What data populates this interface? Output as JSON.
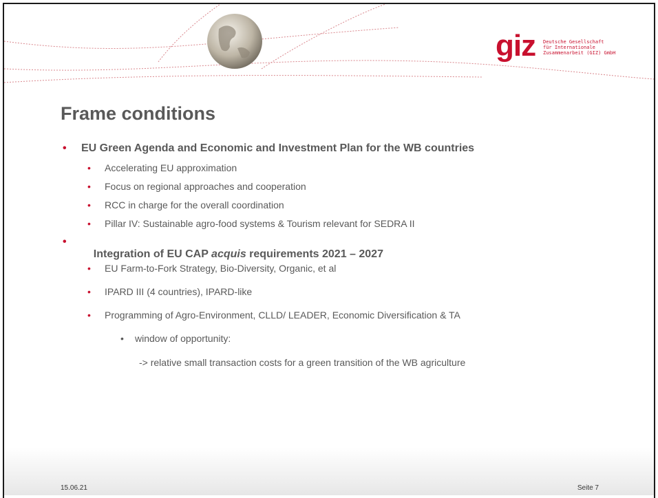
{
  "header": {
    "logo": "giz",
    "logo_lines": [
      "Deutsche Gesellschaft",
      "für Internationale",
      "Zusammenarbeit (GIZ) GmbH"
    ]
  },
  "title": "Frame conditions",
  "items": [
    "EU Green Agenda and Economic and Investment Plan for the WB countries",
    "Accelerating EU approximation",
    "Focus on regional approaches and cooperation",
    "RCC in charge for the overall coordination",
    "Pillar IV: Sustainable agro-food systems & Tourism relevant for SEDRA II",
    {
      "parts": [
        "Integration of EU CAP ",
        "acquis",
        " requirements 2021 – 2027"
      ]
    },
    "EU Farm-to-Fork Strategy, Bio-Diversity, Organic, et al",
    "IPARD III (4 countries), IPARD-like",
    "Programming of Agro-Environment, CLLD/ LEADER, Economic Diversification & TA",
    "window of opportunity:",
    "-> relative small transaction costs for a green transition of the WB agriculture"
  ],
  "footer": {
    "date": "15.06.21",
    "page": "Seite 7"
  }
}
